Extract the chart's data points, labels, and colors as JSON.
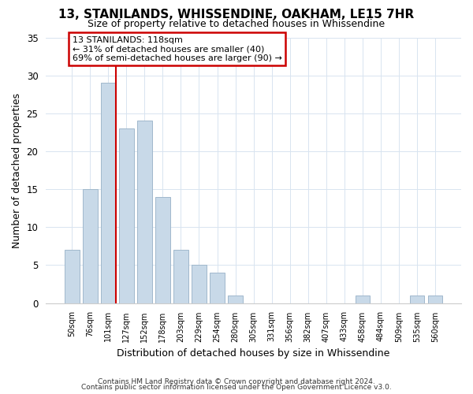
{
  "title": "13, STANILANDS, WHISSENDINE, OAKHAM, LE15 7HR",
  "subtitle": "Size of property relative to detached houses in Whissendine",
  "xlabel": "Distribution of detached houses by size in Whissendine",
  "ylabel": "Number of detached properties",
  "bin_labels": [
    "50sqm",
    "76sqm",
    "101sqm",
    "127sqm",
    "152sqm",
    "178sqm",
    "203sqm",
    "229sqm",
    "254sqm",
    "280sqm",
    "305sqm",
    "331sqm",
    "356sqm",
    "382sqm",
    "407sqm",
    "433sqm",
    "458sqm",
    "484sqm",
    "509sqm",
    "535sqm",
    "560sqm"
  ],
  "bin_values": [
    7,
    15,
    29,
    23,
    24,
    14,
    7,
    5,
    4,
    1,
    0,
    0,
    0,
    0,
    0,
    0,
    1,
    0,
    0,
    1,
    1
  ],
  "bar_color": "#c8d9e8",
  "bar_edgecolor": "#a0b8cc",
  "marker_color": "#cc0000",
  "annotation_title": "13 STANILANDS: 118sqm",
  "annotation_line1": "← 31% of detached houses are smaller (40)",
  "annotation_line2": "69% of semi-detached houses are larger (90) →",
  "annotation_box_edgecolor": "#cc0000",
  "ylim": [
    0,
    35
  ],
  "yticks": [
    0,
    5,
    10,
    15,
    20,
    25,
    30,
    35
  ],
  "footer1": "Contains HM Land Registry data © Crown copyright and database right 2024.",
  "footer2": "Contains public sector information licensed under the Open Government Licence v3.0.",
  "background_color": "#ffffff",
  "grid_color": "#d8e4f0"
}
